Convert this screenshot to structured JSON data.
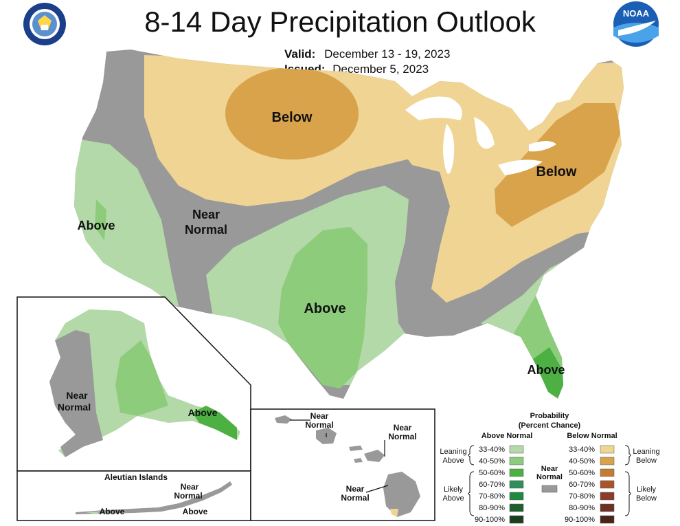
{
  "title": "8-14 Day Precipitation Outlook",
  "valid_label": "Valid:",
  "valid_value": "December 13 - 19, 2023",
  "issued_label": "Issued:",
  "issued_value": "December 5, 2023",
  "logos": {
    "left": "department-of-commerce-seal",
    "right": "noaa-logo",
    "right_text": "NOAA"
  },
  "map_labels": {
    "north_below": "Below",
    "northeast_below": "Below",
    "west_above": "Above",
    "near_normal_1": "Near",
    "near_normal_2": "Normal",
    "south_above": "Above",
    "florida_above": "Above",
    "alaska_near_1": "Near",
    "alaska_near_2": "Normal",
    "alaska_above": "Above",
    "aleutian_title": "Aleutian Islands",
    "aleutian_near_1": "Near",
    "aleutian_near_2": "Normal",
    "aleutian_above_1": "Above",
    "aleutian_above_2": "Above",
    "hawaii_near_a1": "Near",
    "hawaii_near_a2": "Normal",
    "hawaii_near_b1": "Near",
    "hawaii_near_b2": "Normal",
    "hawaii_near_c1": "Near",
    "hawaii_near_c2": "Normal"
  },
  "legend": {
    "title_1": "Probability",
    "title_2": "(Percent Chance)",
    "above_header": "Above Normal",
    "below_header": "Below Normal",
    "near_1": "Near",
    "near_2": "Normal",
    "leaning_above_1": "Leaning",
    "leaning_above_2": "Above",
    "likely_above_1": "Likely",
    "likely_above_2": "Above",
    "leaning_below_1": "Leaning",
    "leaning_below_2": "Below",
    "likely_below_1": "Likely",
    "likely_below_2": "Below",
    "above": [
      {
        "range": "33-40%",
        "color": "#b3d9a8"
      },
      {
        "range": "40-50%",
        "color": "#8ccc7a"
      },
      {
        "range": "50-60%",
        "color": "#4cb043"
      },
      {
        "range": "60-70%",
        "color": "#2f8f5a"
      },
      {
        "range": "70-80%",
        "color": "#1f8a3e"
      },
      {
        "range": "80-90%",
        "color": "#1f5f2e"
      },
      {
        "range": "90-100%",
        "color": "#1a3f1f"
      }
    ],
    "below": [
      {
        "range": "33-40%",
        "color": "#f0d494"
      },
      {
        "range": "40-50%",
        "color": "#d9a34c"
      },
      {
        "range": "50-60%",
        "color": "#c47b32"
      },
      {
        "range": "60-70%",
        "color": "#a8552a"
      },
      {
        "range": "70-80%",
        "color": "#8a3d2a"
      },
      {
        "range": "80-90%",
        "color": "#6e3022"
      },
      {
        "range": "90-100%",
        "color": "#4a2418"
      }
    ],
    "near_color": "#999999"
  }
}
